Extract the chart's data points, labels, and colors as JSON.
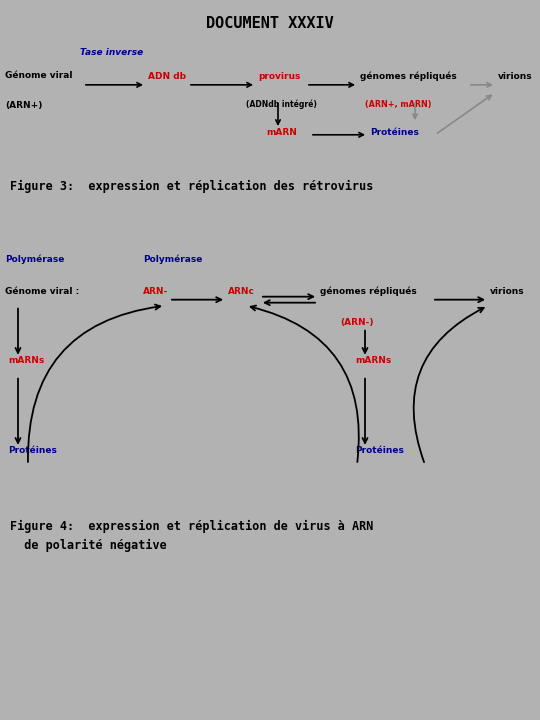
{
  "title": "DOCUMENT XXXIV",
  "bg_color": "#b2b2b2",
  "white_bg": "#ede8e0",
  "fig3_caption": "Figure 3:  expression et réplication des rétrovirus",
  "fig4_caption1": "Figure 4:  expression et réplication de virus à ARN",
  "fig4_caption2": "  de polarité négative",
  "black": "#000000",
  "red": "#cc0000",
  "darkblue": "#00008B",
  "gray": "#888888"
}
